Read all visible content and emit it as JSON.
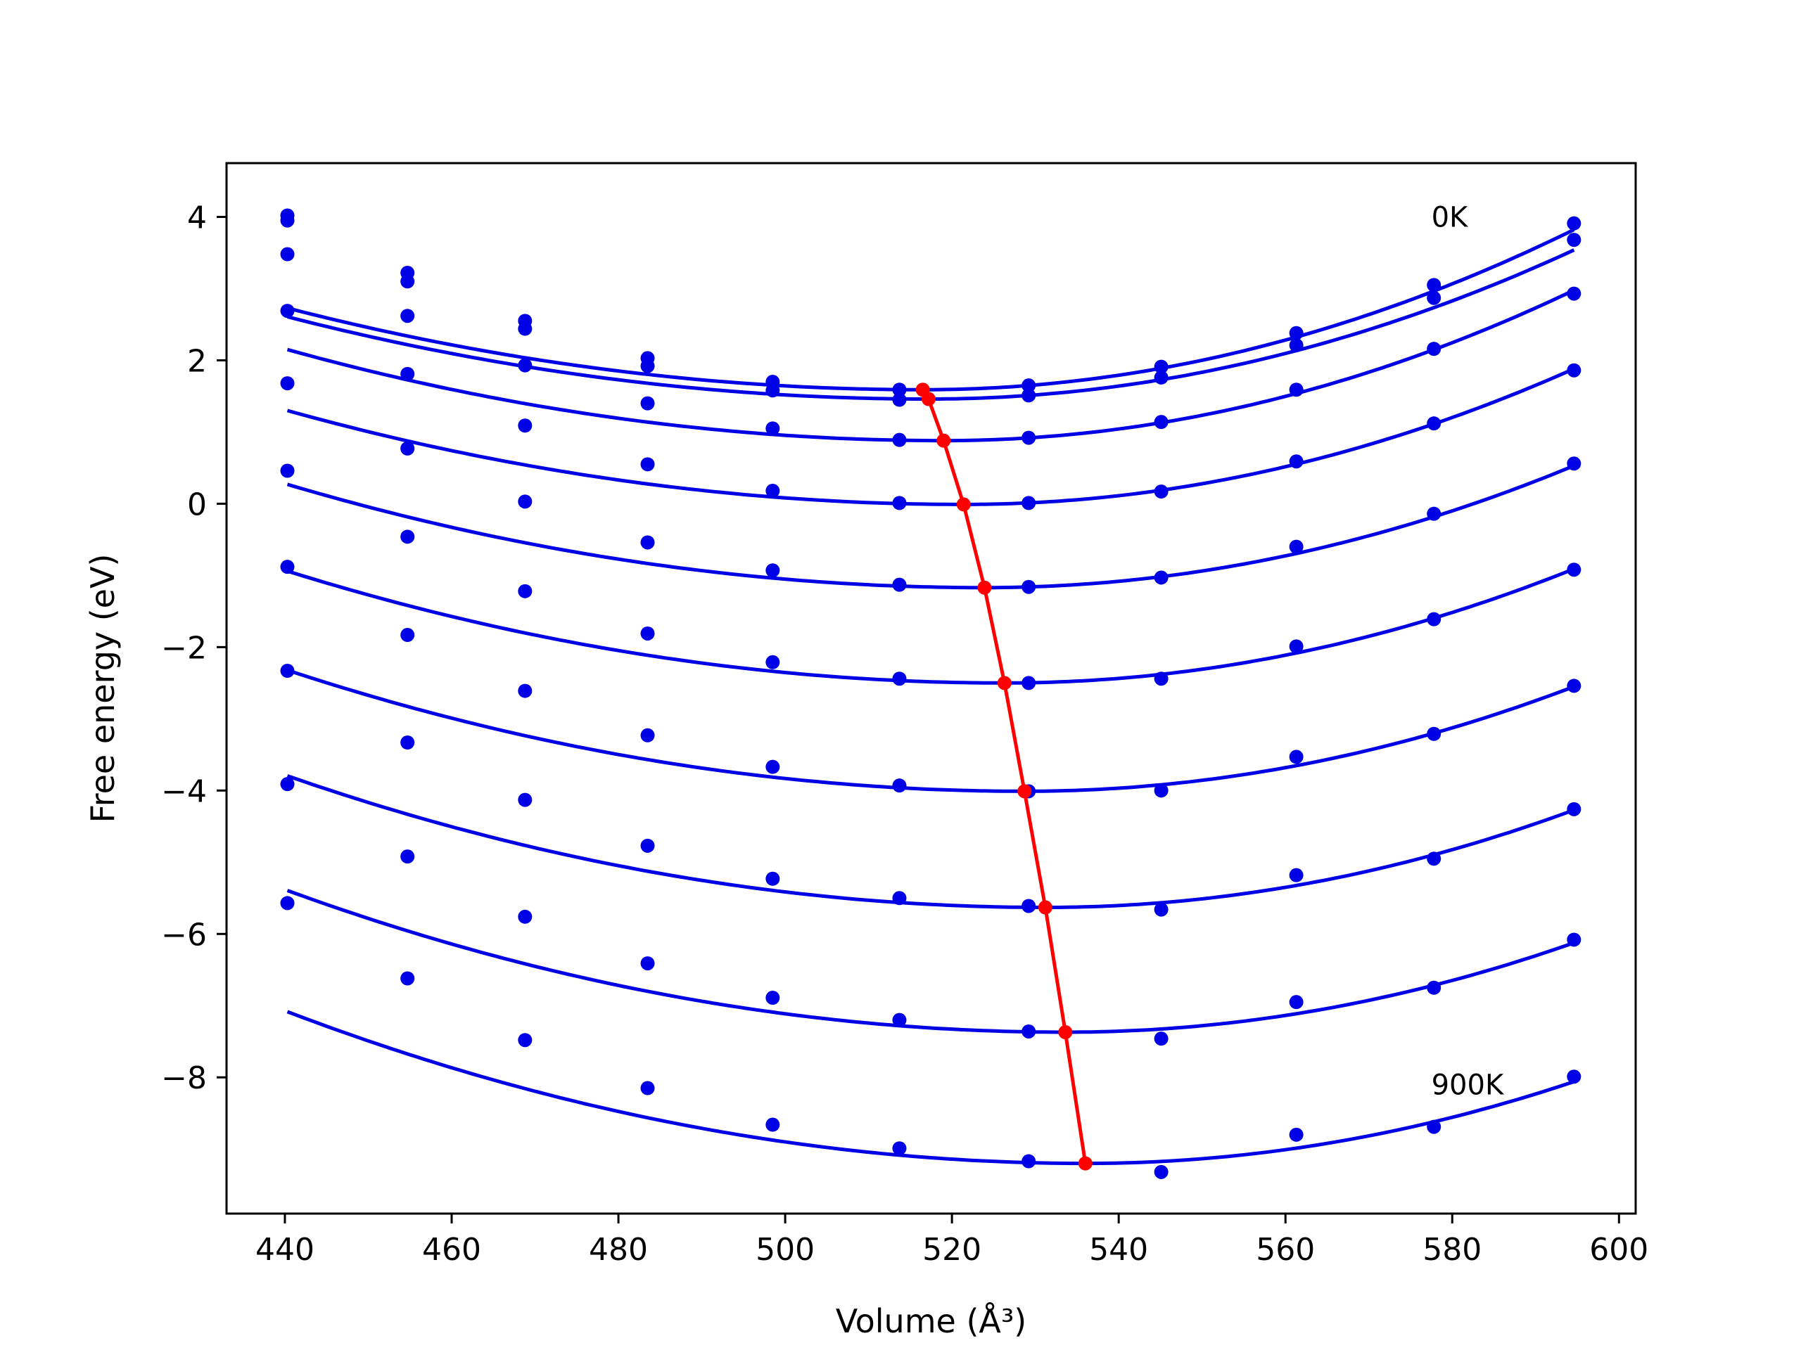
{
  "chart_data": {
    "type": "line",
    "xlabel": "Volume (Å³)",
    "ylabel": "Free energy (eV)",
    "xlim": [
      433,
      602
    ],
    "ylim": [
      -9.9,
      4.75
    ],
    "x_ticks": [
      440,
      460,
      480,
      500,
      520,
      540,
      560,
      580,
      600
    ],
    "y_ticks": [
      4,
      2,
      0,
      -2,
      -4,
      -6,
      -8
    ],
    "grid": false,
    "colors": {
      "curves": "#0000e6",
      "minimum_path": "#ff0000",
      "axes": "#000000"
    },
    "annotations": [
      {
        "text": "0K",
        "x": 577.5,
        "y": 4.0
      },
      {
        "text": "900K",
        "x": 577.5,
        "y": -8.1
      }
    ],
    "volumes": [
      440.3,
      454.7,
      468.8,
      483.5,
      498.5,
      513.7,
      529.2,
      545.1,
      561.3,
      577.8,
      594.6
    ],
    "series": [
      {
        "points": [
          4.02,
          3.22,
          2.55,
          2.03,
          1.7,
          1.59,
          1.65,
          1.91,
          2.38,
          3.05,
          3.91
        ],
        "fit": {
          "vmin": 516.5,
          "emin": 1.59,
          "a_left": 0.000196,
          "a_right": 0.000366
        }
      },
      {
        "points": [
          3.95,
          3.1,
          2.44,
          1.92,
          1.58,
          1.45,
          1.51,
          1.76,
          2.21,
          2.87,
          3.68
        ],
        "fit": {
          "vmin": 517.2,
          "emin": 1.46,
          "a_left": 0.000194,
          "a_right": 0.000347
        }
      },
      {
        "points": [
          3.48,
          2.62,
          1.93,
          1.4,
          1.05,
          0.89,
          0.92,
          1.14,
          1.59,
          2.16,
          2.93
        ],
        "fit": {
          "vmin": 519.0,
          "emin": 0.88,
          "a_left": 0.000205,
          "a_right": 0.000367
        }
      },
      {
        "points": [
          2.69,
          1.81,
          1.09,
          0.55,
          0.18,
          0.01,
          0.01,
          0.17,
          0.59,
          1.12,
          1.86
        ],
        "fit": {
          "vmin": 521.4,
          "emin": -0.01,
          "a_left": 0.000199,
          "a_right": 0.000353
        }
      },
      {
        "points": [
          1.68,
          0.77,
          0.03,
          -0.54,
          -0.93,
          -1.13,
          -1.16,
          -1.03,
          -0.6,
          -0.14,
          0.56
        ],
        "fit": {
          "vmin": 523.9,
          "emin": -1.17,
          "a_left": 0.000206,
          "a_right": 0.00034
        }
      },
      {
        "points": [
          0.46,
          -0.46,
          -1.22,
          -1.81,
          -2.21,
          -2.44,
          -2.5,
          -2.44,
          -1.99,
          -1.61,
          -0.92
        ],
        "fit": {
          "vmin": 526.3,
          "emin": -2.5,
          "a_left": 0.000211,
          "a_right": 0.000341
        }
      },
      {
        "points": [
          -0.88,
          -1.83,
          -2.61,
          -3.23,
          -3.67,
          -3.93,
          -4.01,
          -4.0,
          -3.53,
          -3.21,
          -2.54
        ],
        "fit": {
          "vmin": 528.7,
          "emin": -4.01,
          "a_left": 0.000216,
          "a_right": 0.000336
        }
      },
      {
        "points": [
          -2.33,
          -3.33,
          -4.13,
          -4.77,
          -5.23,
          -5.5,
          -5.61,
          -5.66,
          -5.18,
          -4.95,
          -4.26
        ],
        "fit": {
          "vmin": 531.2,
          "emin": -5.63,
          "a_left": 0.000222,
          "a_right": 0.000338
        }
      },
      {
        "points": [
          -3.91,
          -4.92,
          -5.76,
          -6.41,
          -6.89,
          -7.2,
          -7.36,
          -7.46,
          -6.95,
          -6.75,
          -6.08
        ],
        "fit": {
          "vmin": 533.6,
          "emin": -7.37,
          "a_left": 0.000227,
          "a_right": 0.000335
        }
      },
      {
        "points": [
          -5.57,
          -6.62,
          -7.48,
          -8.15,
          -8.66,
          -8.99,
          -9.17,
          -9.32,
          -8.8,
          -8.69,
          -7.99
        ],
        "fit": {
          "vmin": 536.0,
          "emin": -9.2,
          "a_left": 0.000231,
          "a_right": 0.000332
        }
      }
    ],
    "minimum_path": {
      "x": [
        516.5,
        517.2,
        519.0,
        521.4,
        523.9,
        526.3,
        528.7,
        531.2,
        533.6,
        536.0
      ],
      "y": [
        1.59,
        1.46,
        0.88,
        -0.01,
        -1.17,
        -2.5,
        -4.01,
        -5.63,
        -7.37,
        -9.2
      ]
    }
  }
}
